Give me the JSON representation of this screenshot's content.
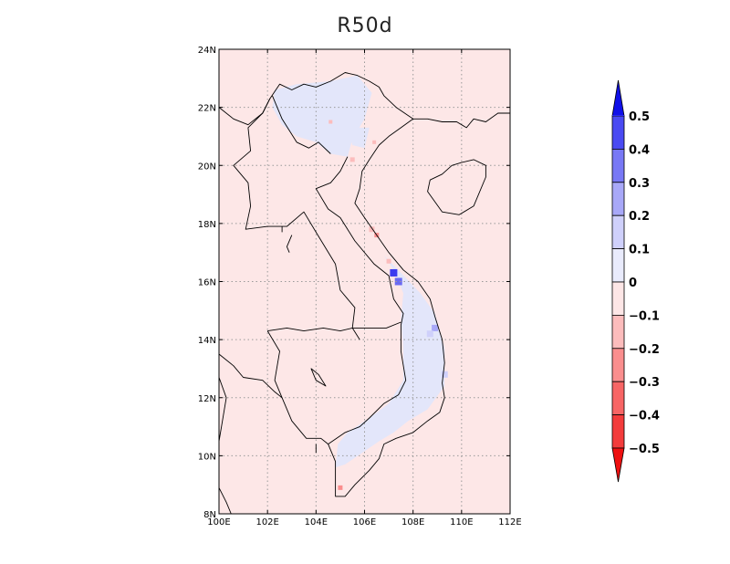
{
  "title": "R50d",
  "map": {
    "lon_range": [
      100,
      112
    ],
    "lat_range": [
      8,
      24
    ],
    "background_color": "#fde7e7",
    "land_anomaly_color": "#e3e6fa",
    "coast_color": "#000000",
    "grid": true
  },
  "axes": {
    "x_ticks": [
      {
        "value": 100,
        "label": "100E"
      },
      {
        "value": 102,
        "label": "102E"
      },
      {
        "value": 104,
        "label": "104E"
      },
      {
        "value": 106,
        "label": "106E"
      },
      {
        "value": 108,
        "label": "108E"
      },
      {
        "value": 110,
        "label": "110E"
      },
      {
        "value": 112,
        "label": "112E"
      }
    ],
    "y_ticks": [
      {
        "value": 8,
        "label": "8N"
      },
      {
        "value": 10,
        "label": "10N"
      },
      {
        "value": 12,
        "label": "12N"
      },
      {
        "value": 14,
        "label": "14N"
      },
      {
        "value": 16,
        "label": "16N"
      },
      {
        "value": 18,
        "label": "18N"
      },
      {
        "value": 20,
        "label": "20N"
      },
      {
        "value": 22,
        "label": "22N"
      },
      {
        "value": 24,
        "label": "24N"
      }
    ]
  },
  "colorbar": {
    "levels": [
      "0.5",
      "0.4",
      "0.3",
      "0.2",
      "0.1",
      "0",
      "−0.1",
      "−0.2",
      "−0.3",
      "−0.4",
      "−0.5"
    ],
    "colors": [
      "#2a2aee",
      "#4a4af2",
      "#7878f5",
      "#a8a8f8",
      "#cfd0fb",
      "#e9ebfc",
      "#fde6e6",
      "#fcbcbc",
      "#fa8e8e",
      "#f76565",
      "#f33c3c",
      "#ee1010"
    ],
    "top_arrow_color": "#1010e8",
    "bottom_arrow_color": "#ee1010"
  }
}
